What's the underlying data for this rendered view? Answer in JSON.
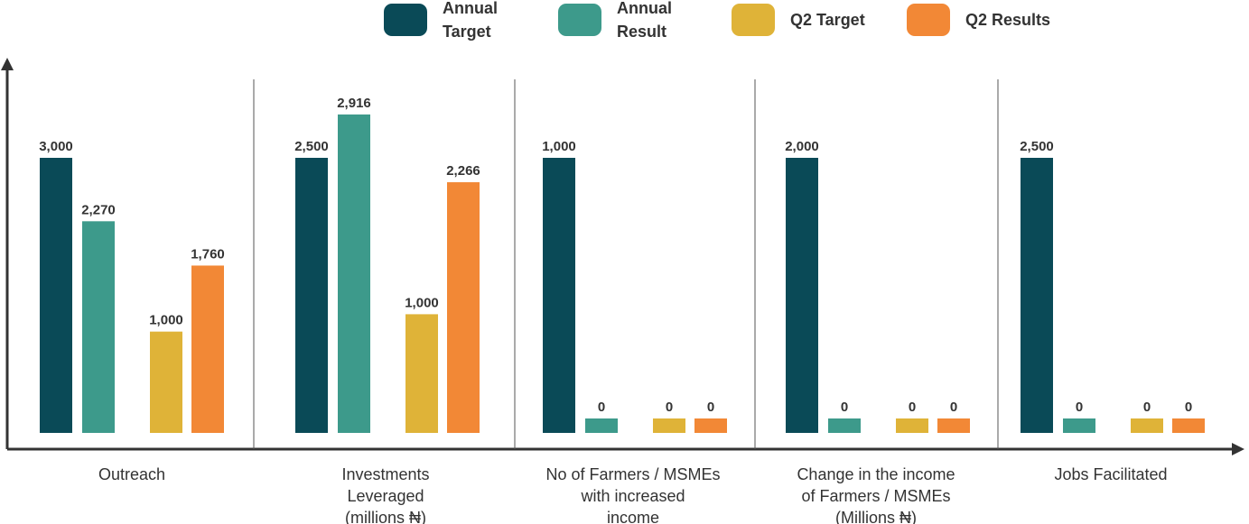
{
  "chart_data": {
    "type": "bar",
    "title": "",
    "xlabel": "",
    "ylabel": "",
    "grid": false,
    "legend_position": "top",
    "categories": [
      [
        "Outreach"
      ],
      [
        "Investments",
        "Leveraged",
        "(millions ₦)"
      ],
      [
        "No of Farmers / MSMEs",
        "with increased",
        "income"
      ],
      [
        "Change in the income",
        "of Farmers / MSMEs",
        "(Millions ₦)"
      ],
      [
        "Jobs Facilitated"
      ]
    ],
    "series": [
      {
        "name": [
          "Annual",
          "Target"
        ],
        "color": "#0a4a57",
        "values": [
          3000,
          2500,
          1000,
          2000,
          2500
        ],
        "labels": [
          "3,000",
          "2,500",
          "1,000",
          "2,000",
          "2,500"
        ]
      },
      {
        "name": [
          "Annual",
          "Result"
        ],
        "color": "#3d9a8b",
        "values": [
          2270,
          2916,
          0,
          0,
          0
        ],
        "labels": [
          "2,270",
          "2,916",
          "0",
          "0",
          "0"
        ]
      },
      {
        "name": [
          "Q2 Target"
        ],
        "color": "#dfb338",
        "values": [
          1000,
          1000,
          0,
          0,
          0
        ],
        "labels": [
          "1,000",
          "1,000",
          "0",
          "0",
          "0"
        ]
      },
      {
        "name": [
          "Q2 Results"
        ],
        "color": "#f28836",
        "values": [
          1760,
          2266,
          0,
          0,
          0
        ],
        "labels": [
          "1,760",
          "2,266",
          "0",
          "0",
          "0"
        ]
      }
    ]
  }
}
